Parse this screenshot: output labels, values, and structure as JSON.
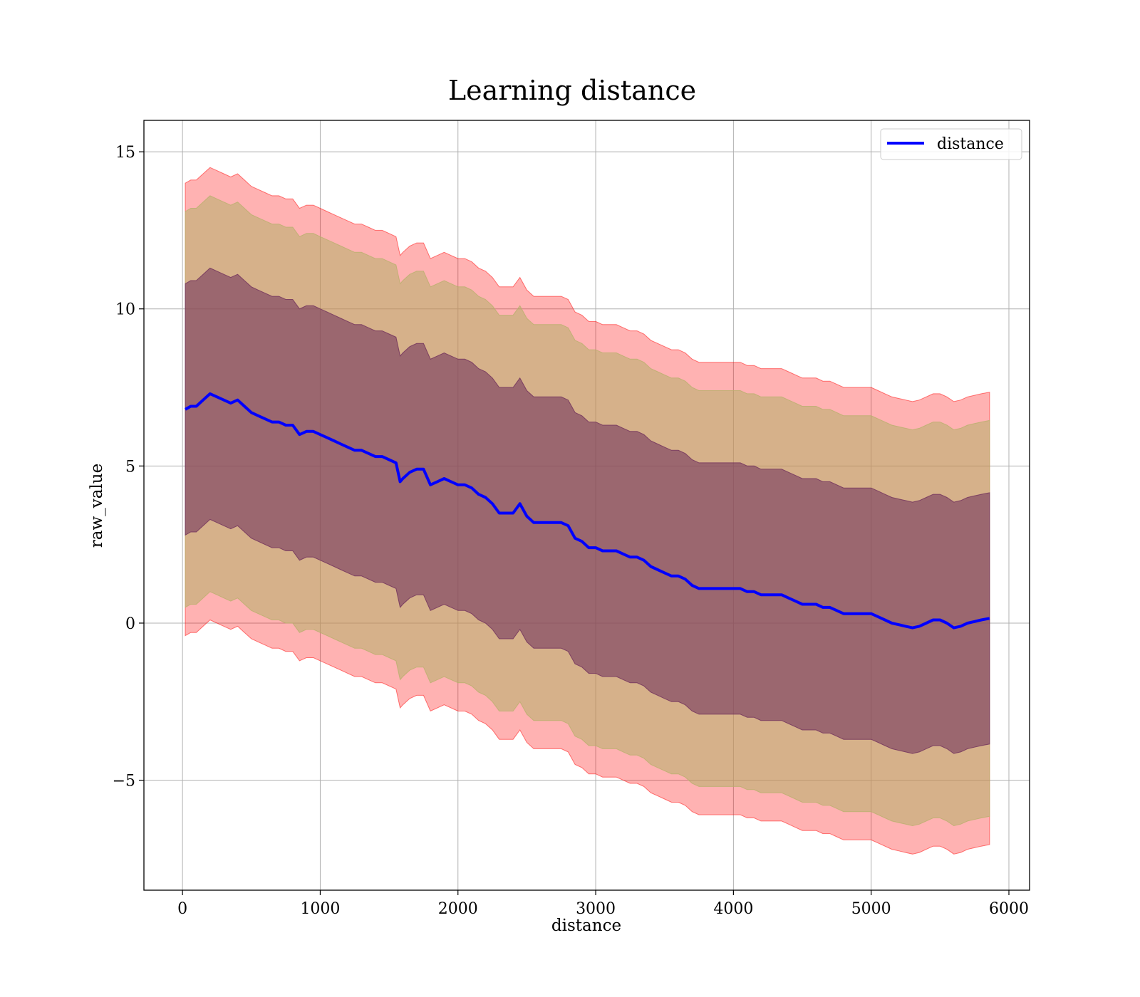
{
  "chart_data": {
    "type": "line",
    "title": "Learning distance",
    "xlabel": "distance",
    "ylabel": "raw_value",
    "xlim": [
      -280,
      6150
    ],
    "ylim": [
      -8.5,
      16.0
    ],
    "xticks": [
      0,
      1000,
      2000,
      3000,
      4000,
      5000,
      6000
    ],
    "xtick_labels": [
      "0",
      "1000",
      "2000",
      "3000",
      "4000",
      "5000",
      "6000"
    ],
    "yticks": [
      -5,
      0,
      5,
      10,
      15
    ],
    "ytick_labels": [
      "−5",
      "0",
      "5",
      "10",
      "15"
    ],
    "grid": true,
    "legend": {
      "position": "top-right",
      "entries": [
        "distance"
      ]
    },
    "series": [
      {
        "name": "distance",
        "color": "#0000ff",
        "x": [
          20,
          60,
          100,
          150,
          200,
          250,
          300,
          350,
          400,
          450,
          500,
          550,
          600,
          650,
          700,
          750,
          800,
          850,
          900,
          950,
          1000,
          1050,
          1100,
          1150,
          1200,
          1250,
          1300,
          1350,
          1400,
          1450,
          1500,
          1550,
          1580,
          1600,
          1650,
          1700,
          1750,
          1800,
          1850,
          1900,
          1950,
          2000,
          2050,
          2100,
          2150,
          2200,
          2250,
          2300,
          2350,
          2400,
          2450,
          2500,
          2550,
          2600,
          2650,
          2700,
          2750,
          2800,
          2850,
          2900,
          2950,
          3000,
          3050,
          3100,
          3150,
          3200,
          3250,
          3300,
          3350,
          3400,
          3450,
          3500,
          3550,
          3600,
          3650,
          3700,
          3750,
          3800,
          3850,
          3900,
          3950,
          4000,
          4050,
          4100,
          4150,
          4200,
          4250,
          4300,
          4350,
          4400,
          4450,
          4500,
          4550,
          4600,
          4650,
          4700,
          4750,
          4800,
          4850,
          4900,
          4950,
          5000,
          5050,
          5100,
          5150,
          5200,
          5250,
          5300,
          5350,
          5400,
          5450,
          5500,
          5550,
          5600,
          5650,
          5700,
          5750,
          5800,
          5860
        ],
        "y": [
          6.8,
          6.9,
          6.9,
          7.1,
          7.3,
          7.2,
          7.1,
          7.0,
          7.1,
          6.9,
          6.7,
          6.6,
          6.5,
          6.4,
          6.4,
          6.3,
          6.3,
          6.0,
          6.1,
          6.1,
          6.0,
          5.9,
          5.8,
          5.7,
          5.6,
          5.5,
          5.5,
          5.4,
          5.3,
          5.3,
          5.2,
          5.1,
          4.5,
          4.6,
          4.8,
          4.9,
          4.9,
          4.4,
          4.5,
          4.6,
          4.5,
          4.4,
          4.4,
          4.3,
          4.1,
          4.0,
          3.8,
          3.5,
          3.5,
          3.5,
          3.8,
          3.4,
          3.2,
          3.2,
          3.2,
          3.2,
          3.2,
          3.1,
          2.7,
          2.6,
          2.4,
          2.4,
          2.3,
          2.3,
          2.3,
          2.2,
          2.1,
          2.1,
          2.0,
          1.8,
          1.7,
          1.6,
          1.5,
          1.5,
          1.4,
          1.2,
          1.1,
          1.1,
          1.1,
          1.1,
          1.1,
          1.1,
          1.1,
          1.0,
          1.0,
          0.9,
          0.9,
          0.9,
          0.9,
          0.8,
          0.7,
          0.6,
          0.6,
          0.6,
          0.5,
          0.5,
          0.4,
          0.3,
          0.3,
          0.3,
          0.3,
          0.3,
          0.2,
          0.1,
          0.0,
          -0.05,
          -0.1,
          -0.15,
          -0.1,
          0.0,
          0.1,
          0.1,
          0.0,
          -0.15,
          -0.1,
          0.0,
          0.05,
          0.1,
          0.15
        ],
        "bands": [
          {
            "halfwidth": 7.2,
            "color": "#ff0000",
            "opacity": 0.3
          },
          {
            "halfwidth": 6.3,
            "color": "#b5b06a",
            "opacity": 0.55
          },
          {
            "halfwidth": 4.0,
            "color": "#6b2a5a",
            "opacity": 0.55
          }
        ]
      }
    ]
  }
}
